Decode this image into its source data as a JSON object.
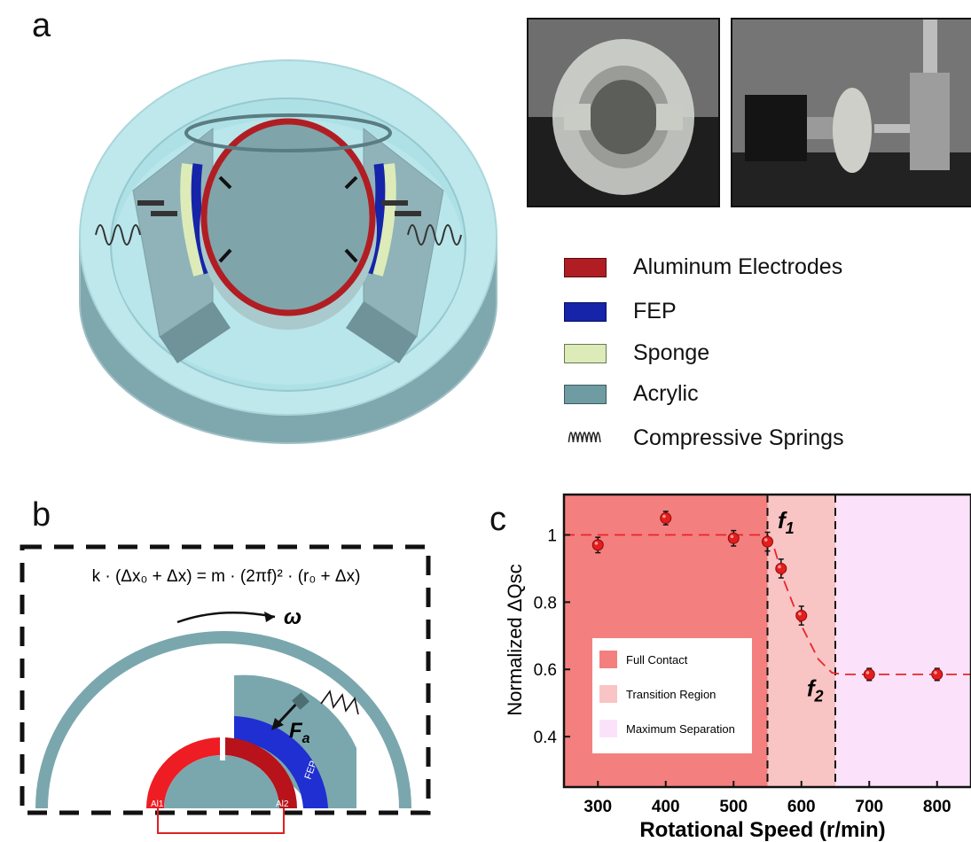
{
  "panels": {
    "a": "a",
    "b": "b",
    "c": "c"
  },
  "legend": [
    {
      "label": "Aluminum Electrodes",
      "color": "#b01e24",
      "icon": "red-swatch"
    },
    {
      "label": "FEP",
      "color": "#1524a8",
      "icon": "blue-swatch"
    },
    {
      "label": "Sponge",
      "color": "#dcebb8",
      "icon": "yellowgreen-swatch"
    },
    {
      "label": "Acrylic",
      "color": "#6f9ba2",
      "icon": "teal-swatch"
    },
    {
      "label": "Compressive Springs",
      "color": "#222222",
      "icon": "spring-symbol"
    }
  ],
  "schematic": {
    "equation": "k · (Δx₀ + Δx) = m · (2πf)² · (r₀ + Δx)",
    "omega": "ω",
    "force": "F",
    "force_sub": "a",
    "fep_label": "FEP",
    "al1_label": "Al1",
    "al2_label": "Al2"
  },
  "chart_data": {
    "type": "scatter",
    "xlabel": "Rotational Speed (r/min)",
    "ylabel": "Normalized ΔQsc",
    "xlim": [
      250,
      850
    ],
    "ylim": [
      0.25,
      1.12
    ],
    "xticks": [
      300,
      400,
      500,
      600,
      700,
      800
    ],
    "yticks": [
      0.4,
      0.6,
      0.8,
      1
    ],
    "points": [
      {
        "x": 300,
        "y": 0.97,
        "err": 0.015
      },
      {
        "x": 400,
        "y": 1.05,
        "err": 0.012
      },
      {
        "x": 500,
        "y": 0.99,
        "err": 0.015
      },
      {
        "x": 550,
        "y": 0.98,
        "err": 0.02
      },
      {
        "x": 570,
        "y": 0.9,
        "err": 0.02
      },
      {
        "x": 600,
        "y": 0.76,
        "err": 0.02
      },
      {
        "x": 700,
        "y": 0.585,
        "err": 0.01
      },
      {
        "x": 800,
        "y": 0.585,
        "err": 0.01
      }
    ],
    "fit_line": [
      [
        250,
        1.0
      ],
      [
        550,
        1.0
      ],
      [
        560,
        0.96
      ],
      [
        575,
        0.86
      ],
      [
        600,
        0.73
      ],
      [
        625,
        0.63
      ],
      [
        645,
        0.59
      ],
      [
        660,
        0.585
      ],
      [
        850,
        0.585
      ]
    ],
    "regions": [
      {
        "name": "Full Contact",
        "from": 250,
        "to": 550,
        "color": "#f47f7f"
      },
      {
        "name": "Transition Region",
        "from": 550,
        "to": 650,
        "color": "#f9c4c4"
      },
      {
        "name": "Maximum Separation",
        "from": 650,
        "to": 850,
        "color": "#fbe2fa"
      }
    ],
    "annotations": [
      {
        "text": "f",
        "sub": "1",
        "x": 565,
        "y": 1.02
      },
      {
        "text": "f",
        "sub": "2",
        "x": 608,
        "y": 0.52
      }
    ]
  }
}
